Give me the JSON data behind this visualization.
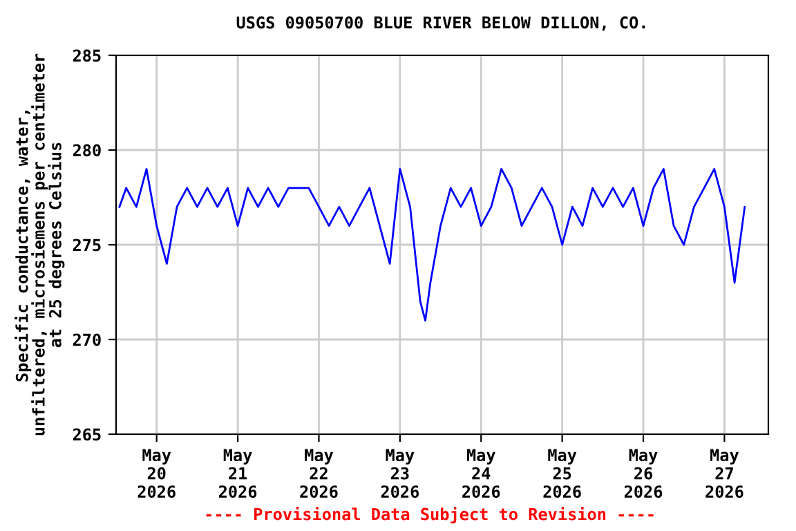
{
  "chart_data": {
    "type": "line",
    "title": "USGS 09050700 BLUE RIVER BELOW DILLON, CO.",
    "ylabel": "Specific conductance, water,\nunfiltered, microsiemens per centimeter\nat 25 degrees Celsius",
    "x": [
      "2026-05-19T13:00",
      "2026-05-19T15:00",
      "2026-05-19T18:00",
      "2026-05-19T21:00",
      "2026-05-20T00:00",
      "2026-05-20T03:00",
      "2026-05-20T06:00",
      "2026-05-20T09:00",
      "2026-05-20T12:00",
      "2026-05-20T15:00",
      "2026-05-20T18:00",
      "2026-05-20T21:00",
      "2026-05-21T00:00",
      "2026-05-21T03:00",
      "2026-05-21T06:00",
      "2026-05-21T09:00",
      "2026-05-21T12:00",
      "2026-05-21T15:00",
      "2026-05-21T18:00",
      "2026-05-21T21:00",
      "2026-05-22T00:00",
      "2026-05-22T03:00",
      "2026-05-22T06:00",
      "2026-05-22T09:00",
      "2026-05-22T12:00",
      "2026-05-22T15:00",
      "2026-05-22T18:00",
      "2026-05-22T21:00",
      "2026-05-23T00:00",
      "2026-05-23T03:00",
      "2026-05-23T06:00",
      "2026-05-23T07:30",
      "2026-05-23T09:00",
      "2026-05-23T12:00",
      "2026-05-23T15:00",
      "2026-05-23T18:00",
      "2026-05-23T21:00",
      "2026-05-24T00:00",
      "2026-05-24T03:00",
      "2026-05-24T06:00",
      "2026-05-24T09:00",
      "2026-05-24T12:00",
      "2026-05-24T15:00",
      "2026-05-24T18:00",
      "2026-05-24T21:00",
      "2026-05-25T00:00",
      "2026-05-25T03:00",
      "2026-05-25T06:00",
      "2026-05-25T09:00",
      "2026-05-25T12:00",
      "2026-05-25T15:00",
      "2026-05-25T18:00",
      "2026-05-25T21:00",
      "2026-05-26T00:00",
      "2026-05-26T03:00",
      "2026-05-26T06:00",
      "2026-05-26T09:00",
      "2026-05-26T12:00",
      "2026-05-26T15:00",
      "2026-05-26T18:00",
      "2026-05-26T21:00",
      "2026-05-27T00:00",
      "2026-05-27T03:00",
      "2026-05-27T06:00"
    ],
    "series": [
      {
        "color": "#0000ff",
        "values": [
          277,
          278,
          277,
          279,
          276,
          274,
          277,
          278,
          277,
          278,
          277,
          278,
          276,
          278,
          277,
          278,
          277,
          278,
          278,
          278,
          277,
          276,
          277,
          276,
          277,
          278,
          276,
          274,
          279,
          277,
          272,
          271,
          273,
          276,
          278,
          277,
          278,
          276,
          277,
          279,
          278,
          276,
          277,
          278,
          277,
          275,
          277,
          276,
          278,
          277,
          278,
          277,
          278,
          276,
          278,
          279,
          276,
          275,
          277,
          278,
          279,
          277,
          273,
          277
        ]
      }
    ],
    "xlim": [
      "2026-05-19T12:00",
      "2026-05-27T13:00"
    ],
    "xticks": [
      {
        "value": "2026-05-20",
        "label": "May\n20\n2026"
      },
      {
        "value": "2026-05-21",
        "label": "May\n21\n2026"
      },
      {
        "value": "2026-05-22",
        "label": "May\n22\n2026"
      },
      {
        "value": "2026-05-23",
        "label": "May\n23\n2026"
      },
      {
        "value": "2026-05-24",
        "label": "May\n24\n2026"
      },
      {
        "value": "2026-05-25",
        "label": "May\n25\n2026"
      },
      {
        "value": "2026-05-26",
        "label": "May\n26\n2026"
      },
      {
        "value": "2026-05-27",
        "label": "May\n27\n2026"
      }
    ],
    "ylim": [
      265,
      285
    ],
    "yticks": [
      265,
      270,
      275,
      280,
      285
    ],
    "grid": true,
    "annotations": [
      "---- Provisional Data Subject to Revision ----"
    ]
  }
}
